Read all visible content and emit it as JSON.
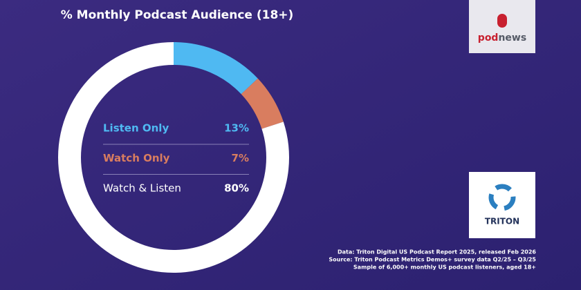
{
  "chart_data": {
    "type": "pie",
    "donut": true,
    "title": "% Monthly Podcast Audience (18+)",
    "categories": [
      "Listen Only",
      "Watch Only",
      "Watch & Listen"
    ],
    "values": [
      13,
      7,
      80
    ],
    "value_labels": [
      "13%",
      "7%",
      "80%"
    ],
    "colors": [
      "#4fb9f2",
      "#d97d5f",
      "#ffffff"
    ]
  },
  "logos": {
    "podnews": [
      "pod",
      "news"
    ],
    "triton": "TRITON"
  },
  "source": [
    "Data: Triton Digital US Podcast Report 2025, released Feb 2026",
    "Source: Triton Podcast Metrics Demos+ survey data Q2/25 – Q3/25",
    "Sample of 6,000+ monthly US podcast listeners, aged 18+"
  ]
}
